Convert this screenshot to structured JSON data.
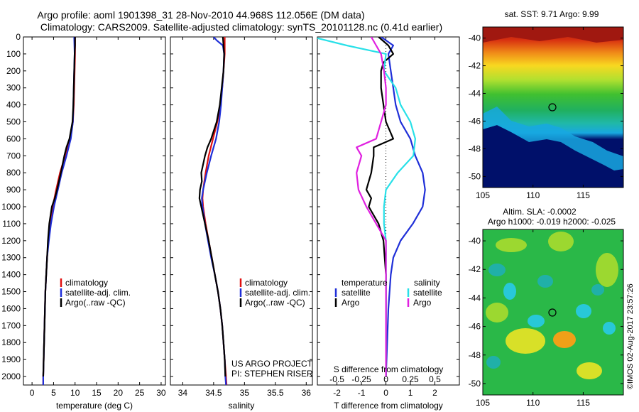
{
  "header": {
    "title_line1": "Argo profile: aoml 1901398_31 28-Nov-2010 44.968S 112.056E (DM data)",
    "title_line2": "Climatology: CARS2009. Satellite-adjusted climatology: synTS_20101128.nc (0.41d earlier)"
  },
  "footer": {
    "project_line1": "US ARGO PROJECT",
    "project_line2": "PI: STEPHEN RISER",
    "imos_stamp": "©IMOS 02-Aug-2017 23:57:26"
  },
  "colors": {
    "climatology": "#e01010",
    "satellite": "#1f2fd8",
    "argo": "#000000",
    "sat_salinity": "#28e0e8",
    "argo_salinity": "#e020e0"
  },
  "chart_data": [
    {
      "type": "line",
      "xlabel": "temperature (deg C)",
      "ylim": [
        2050,
        0
      ],
      "xlim": [
        -2,
        31
      ],
      "y_ticks": [
        0,
        100,
        200,
        300,
        400,
        500,
        600,
        700,
        800,
        900,
        1000,
        1100,
        1200,
        1300,
        1400,
        1500,
        1600,
        1700,
        1800,
        1900,
        2000
      ],
      "x_ticks": [
        0,
        5,
        10,
        15,
        20,
        25,
        30
      ],
      "legend": [
        "climatology",
        "satellite-adj. clim.",
        "Argo(..raw -QC)"
      ],
      "series": [
        {
          "name": "climatology",
          "color": "#e01010",
          "depth": [
            0,
            100,
            200,
            300,
            400,
            500,
            600,
            700,
            800,
            900,
            1000,
            1100,
            1200,
            1300,
            1400,
            1500,
            1600,
            1700,
            1800,
            1900,
            2000,
            2050
          ],
          "values": [
            10.0,
            10.0,
            9.9,
            9.8,
            9.7,
            9.5,
            8.9,
            7.7,
            6.5,
            5.6,
            4.8,
            4.2,
            3.8,
            3.5,
            3.3,
            3.1,
            3.0,
            2.9,
            2.8,
            2.7,
            2.6,
            2.6
          ]
        },
        {
          "name": "satellite-adj. clim.",
          "color": "#1f2fd8",
          "depth": [
            0,
            100,
            200,
            300,
            400,
            500,
            600,
            700,
            800,
            900,
            1000,
            1100,
            1200,
            1300,
            1400,
            1500,
            1600,
            1700,
            1800,
            1900,
            2000,
            2050
          ],
          "values": [
            9.8,
            9.9,
            9.8,
            9.7,
            9.6,
            9.5,
            9.0,
            8.0,
            6.9,
            6.0,
            5.1,
            4.4,
            3.9,
            3.5,
            3.3,
            3.1,
            3.0,
            2.9,
            2.8,
            2.7,
            2.6,
            2.6
          ]
        },
        {
          "name": "Argo(..raw -QC)",
          "color": "#000000",
          "depth": [
            0,
            50,
            100,
            200,
            300,
            400,
            500,
            600,
            650,
            700,
            800,
            900,
            950,
            1000,
            1100,
            1200,
            1300,
            1400,
            1500,
            1600,
            1700,
            1800,
            1900,
            2000
          ],
          "values": [
            10.0,
            10.0,
            9.9,
            9.8,
            9.7,
            9.6,
            9.4,
            8.7,
            8.0,
            7.5,
            6.7,
            5.8,
            5.3,
            4.6,
            4.0,
            3.7,
            3.5,
            3.3,
            3.1,
            3.0,
            2.9,
            2.8,
            2.7,
            2.6
          ]
        }
      ]
    },
    {
      "type": "line",
      "xlabel": "salinity",
      "ylim": [
        2050,
        0
      ],
      "xlim": [
        33.8,
        36.1
      ],
      "x_ticks": [
        34,
        34.5,
        35,
        35.5,
        36
      ],
      "legend": [
        "climatology",
        "satellite-adj. clim.",
        "Argo(..raw -QC)"
      ],
      "series": [
        {
          "name": "climatology",
          "color": "#e01010",
          "depth": [
            0,
            100,
            200,
            300,
            400,
            500,
            600,
            700,
            800,
            900,
            950,
            1000,
            1100,
            1200,
            1300,
            1400,
            1500,
            1600,
            1700,
            1800,
            1900,
            2000,
            2050
          ],
          "values": [
            34.68,
            34.68,
            34.66,
            34.64,
            34.61,
            34.56,
            34.49,
            34.42,
            34.37,
            34.33,
            34.32,
            34.33,
            34.37,
            34.42,
            34.47,
            34.52,
            34.57,
            34.61,
            34.64,
            34.66,
            34.68,
            34.7,
            34.71
          ]
        },
        {
          "name": "satellite-adj. clim.",
          "color": "#1f2fd8",
          "depth": [
            0,
            20,
            50,
            100,
            200,
            300,
            400,
            500,
            600,
            700,
            800,
            900,
            950,
            1000,
            1100,
            1200,
            1300,
            1400,
            1500,
            1600,
            1700,
            1800,
            1900,
            2000,
            2050
          ],
          "values": [
            34.5,
            34.55,
            34.65,
            34.67,
            34.66,
            34.64,
            34.62,
            34.59,
            34.54,
            34.46,
            34.39,
            34.33,
            34.31,
            34.32,
            34.36,
            34.41,
            34.46,
            34.52,
            34.57,
            34.61,
            34.64,
            34.66,
            34.68,
            34.69,
            34.7
          ]
        },
        {
          "name": "Argo(..raw -QC)",
          "color": "#000000",
          "depth": [
            0,
            50,
            100,
            200,
            300,
            400,
            500,
            600,
            650,
            700,
            800,
            850,
            900,
            950,
            1000,
            1100,
            1200,
            1300,
            1400,
            1500,
            1600,
            1700,
            1800,
            1900,
            2000
          ],
          "values": [
            34.65,
            34.66,
            34.67,
            34.66,
            34.63,
            34.6,
            34.55,
            34.46,
            34.4,
            34.36,
            34.3,
            34.31,
            34.28,
            34.27,
            34.3,
            34.36,
            34.42,
            34.47,
            34.52,
            34.57,
            34.61,
            34.64,
            34.66,
            34.68,
            34.69
          ]
        }
      ]
    },
    {
      "type": "line",
      "xlabel": "T difference from climatology",
      "x2label": "S difference from climatology",
      "ylim": [
        2050,
        0
      ],
      "xlim": [
        -2.8,
        3.0
      ],
      "x_ticks": [
        -2,
        -1,
        0,
        1,
        2
      ],
      "x2_ticks": [
        -0.5,
        -0.25,
        0,
        0.25,
        0.5
      ],
      "legend_temperature": "temperature",
      "legend_salinity": "salinity",
      "legend_items": [
        "satellite",
        "Argo"
      ],
      "series": [
        {
          "name": "satellite",
          "group": "temperature",
          "color": "#1f2fd8",
          "depth": [
            0,
            50,
            100,
            200,
            300,
            400,
            500,
            600,
            700,
            800,
            900,
            1000,
            1100,
            1200,
            1300,
            1400,
            1600,
            1800,
            2000
          ],
          "values": [
            -0.2,
            0.3,
            0.1,
            0.2,
            0.3,
            0.4,
            0.6,
            1.0,
            1.2,
            1.5,
            1.6,
            1.5,
            1.1,
            0.6,
            0.3,
            0.2,
            0.1,
            0.05,
            0.0
          ]
        },
        {
          "name": "Argo",
          "group": "temperature",
          "color": "#000000",
          "depth": [
            0,
            50,
            100,
            150,
            200,
            300,
            400,
            500,
            600,
            650,
            700,
            800,
            900,
            950,
            1000,
            1100,
            1200,
            1300,
            1400,
            1600,
            1800,
            2000
          ],
          "values": [
            -0.3,
            0.1,
            0.3,
            -0.1,
            -0.2,
            -0.2,
            -0.1,
            0.0,
            0.3,
            -0.5,
            -0.5,
            -0.6,
            -0.8,
            -0.6,
            -0.7,
            -0.3,
            -0.1,
            -0.05,
            0.0,
            0.0,
            0.0,
            0.0
          ]
        },
        {
          "name": "satellite",
          "group": "salinity",
          "color": "#28e0e8",
          "depth": [
            0,
            50,
            100,
            200,
            300,
            400,
            500,
            600,
            700,
            800,
            900,
            1000,
            1100,
            1200,
            1400,
            1600,
            1800,
            2000
          ],
          "values": [
            -0.75,
            -0.4,
            0.0,
            -0.02,
            0.1,
            0.15,
            0.25,
            0.3,
            0.28,
            0.12,
            0.0,
            -0.02,
            -0.02,
            0.0,
            0.0,
            0.0,
            0.0,
            0.0
          ]
        },
        {
          "name": "Argo",
          "group": "salinity",
          "color": "#e020e0",
          "depth": [
            0,
            50,
            100,
            200,
            300,
            400,
            500,
            600,
            650,
            700,
            800,
            900,
            1000,
            1100,
            1200,
            1300,
            1400,
            1600,
            1800,
            2000
          ],
          "values": [
            -0.15,
            -0.1,
            -0.05,
            -0.02,
            0.0,
            0.0,
            -0.05,
            -0.1,
            -0.3,
            -0.25,
            -0.3,
            -0.28,
            -0.2,
            -0.1,
            0.0,
            0.0,
            0.0,
            0.0,
            0.0,
            0.0
          ]
        }
      ]
    },
    {
      "type": "heatmap",
      "title": "sat. SST: 9.71 Argo: 9.99",
      "x_ticks": [
        105,
        110,
        115
      ],
      "y_ticks": [
        -40,
        -42,
        -44,
        -46,
        -48,
        -50
      ],
      "xlim": [
        105,
        119
      ],
      "ylim": [
        -50.8,
        -39.2
      ],
      "marker": {
        "lon": 112.056,
        "lat": -44.968
      }
    },
    {
      "type": "heatmap",
      "title_line1": "Altim. SLA: -0.0002",
      "title_line2": "Argo h1000: -0.019 h2000: -0.025",
      "x_ticks": [
        105,
        110,
        115
      ],
      "y_ticks": [
        -40,
        -42,
        -44,
        -46,
        -48,
        -50
      ],
      "xlim": [
        105,
        119
      ],
      "ylim": [
        -50.8,
        -39.2
      ],
      "marker": {
        "lon": 112.056,
        "lat": -44.968
      }
    }
  ]
}
